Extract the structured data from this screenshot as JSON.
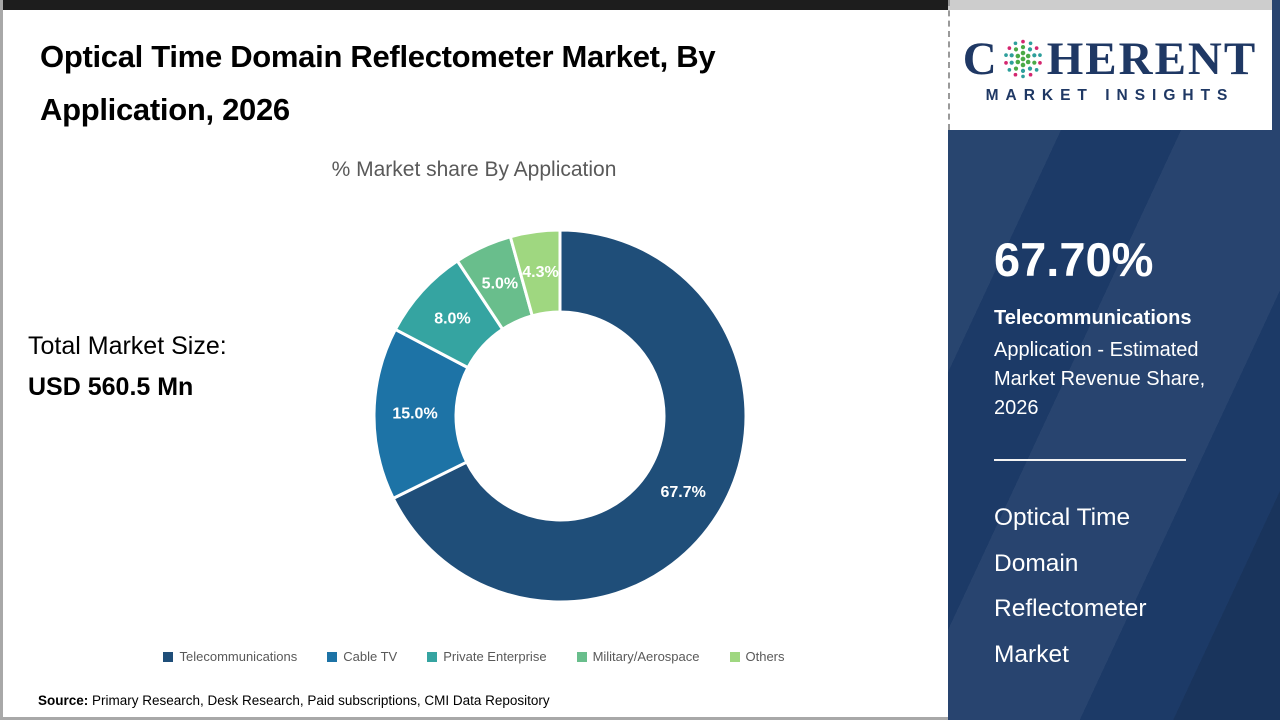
{
  "header": {
    "title_line1": "Optical Time Domain Reflectometer Market, By",
    "title_line2": "Application, 2026"
  },
  "left_panel": {
    "label": "Total Market Size:",
    "value": "USD 560.5 Mn"
  },
  "chart_data": {
    "type": "pie",
    "subtype": "donut",
    "title": "% Market share By Application",
    "categories": [
      "Telecommunications",
      "Cable TV",
      "Private Enterprise",
      "Military/Aerospace",
      "Others"
    ],
    "values": [
      67.7,
      15.0,
      8.0,
      5.0,
      4.3
    ],
    "labels": [
      "67.7%",
      "15.0%",
      "8.0%",
      "5.0%",
      "4.3%"
    ],
    "colors": [
      "#1f4e79",
      "#1d73a6",
      "#35a4a1",
      "#69be8c",
      "#9fd780"
    ],
    "start_angle_deg": 0,
    "direction": "clockwise",
    "legend_position": "bottom",
    "label_color": "#ffffff"
  },
  "source": {
    "label": "Source:",
    "text": " Primary Research, Desk Research, Paid subscriptions, CMI Data Repository"
  },
  "sidebar": {
    "logo": {
      "text_start": "C",
      "text_end": "HERENT",
      "tagline": "MARKET INSIGHTS",
      "navy": "#1f3864",
      "globe_colors": [
        "#4aaa47",
        "#2d9f9b",
        "#d4266f"
      ]
    },
    "stat": {
      "value": "67.70%",
      "name": "Telecommunications",
      "desc_lines": [
        "Application - Estimated",
        "Market Revenue Share,",
        "2026"
      ]
    },
    "footer_lines": [
      "Optical Time",
      "Domain",
      "Reflectometer",
      "Market"
    ]
  },
  "frame": {
    "sidebar_navy": "#1c3a67",
    "top_bar_black": "#1d1d1d",
    "border_gray": "#a8a8a8"
  }
}
